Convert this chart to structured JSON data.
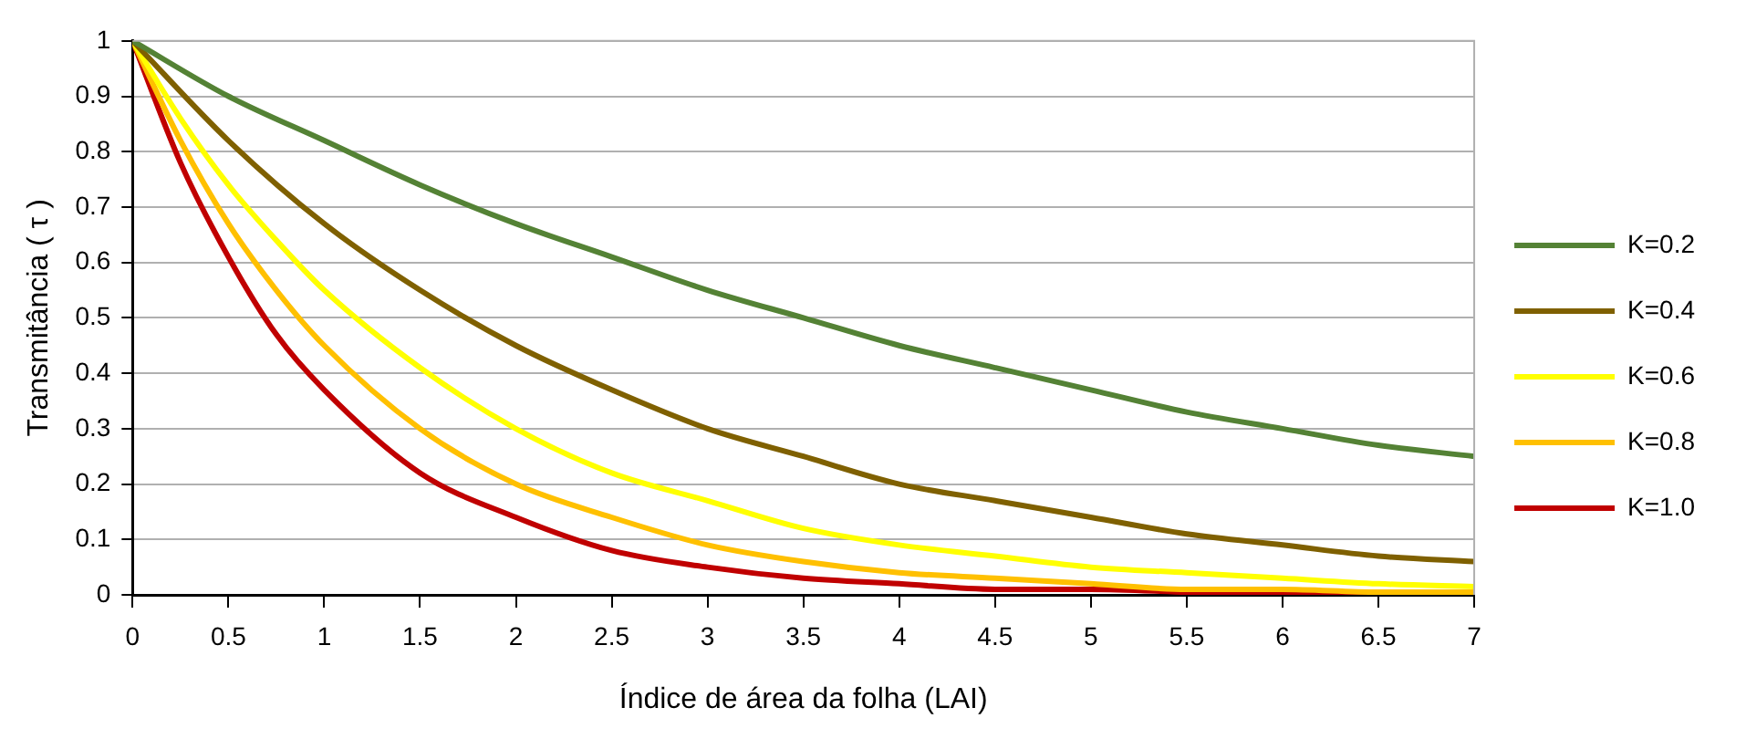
{
  "chart_data": {
    "type": "line",
    "xlabel": "Índice de área da folha (LAI)",
    "ylabel": "Transmitância ( τ )",
    "xlim": [
      0,
      7
    ],
    "xticks": [
      0,
      0.5,
      1,
      1.5,
      2,
      2.5,
      3,
      3.5,
      4,
      4.5,
      5,
      5.5,
      6,
      6.5,
      7
    ],
    "ylim": [
      0,
      1
    ],
    "yticks": [
      0,
      0.1,
      0.2,
      0.3,
      0.4,
      0.5,
      0.6,
      0.7,
      0.8,
      0.9,
      1
    ],
    "grid": "y",
    "legend": "right",
    "marker": "none",
    "line_style": "solid",
    "series": [
      {
        "name": "K=0.2",
        "color": "#548235",
        "x": [
          0,
          0.5,
          1,
          1.5,
          2,
          2.5,
          3,
          3.5,
          4,
          4.5,
          5,
          5.5,
          6,
          6.5,
          7
        ],
        "values": [
          1,
          0.9,
          0.82,
          0.74,
          0.67,
          0.61,
          0.55,
          0.5,
          0.45,
          0.41,
          0.37,
          0.33,
          0.3,
          0.27,
          0.25
        ]
      },
      {
        "name": "K=0.4",
        "color": "#7f6000",
        "x": [
          0,
          0.5,
          1,
          1.5,
          2,
          2.5,
          3,
          3.5,
          4,
          4.5,
          5,
          5.5,
          6,
          6.5,
          7
        ],
        "values": [
          1,
          0.82,
          0.67,
          0.55,
          0.45,
          0.37,
          0.3,
          0.25,
          0.2,
          0.17,
          0.14,
          0.11,
          0.09,
          0.07,
          0.06
        ]
      },
      {
        "name": "K=0.6",
        "color": "#ffff00",
        "x": [
          0,
          0.25,
          0.5,
          0.75,
          1,
          1.5,
          2,
          2.5,
          3,
          3.5,
          4,
          4.5,
          5,
          5.5,
          6,
          6.5,
          7
        ],
        "values": [
          1,
          0.86,
          0.74,
          0.64,
          0.55,
          0.41,
          0.3,
          0.22,
          0.17,
          0.12,
          0.09,
          0.07,
          0.05,
          0.04,
          0.03,
          0.02,
          0.015
        ]
      },
      {
        "name": "K=0.8",
        "color": "#ffc000",
        "x": [
          0,
          0.25,
          0.5,
          0.75,
          1,
          1.5,
          2,
          2.5,
          3,
          3.5,
          4,
          4.5,
          5,
          5.5,
          6,
          6.5,
          7
        ],
        "values": [
          1,
          0.82,
          0.67,
          0.55,
          0.45,
          0.3,
          0.2,
          0.14,
          0.09,
          0.06,
          0.04,
          0.03,
          0.02,
          0.01,
          0.01,
          0.005,
          0.005
        ]
      },
      {
        "name": "K=1.0",
        "color": "#c00000",
        "x": [
          0,
          0.25,
          0.5,
          0.75,
          1,
          1.5,
          2,
          2.5,
          3,
          3.5,
          4,
          4.5,
          5,
          5.5,
          6,
          6.5,
          7
        ],
        "values": [
          1,
          0.78,
          0.61,
          0.47,
          0.37,
          0.22,
          0.14,
          0.08,
          0.05,
          0.03,
          0.02,
          0.01,
          0.01,
          0.005,
          0,
          0,
          0
        ]
      }
    ]
  }
}
